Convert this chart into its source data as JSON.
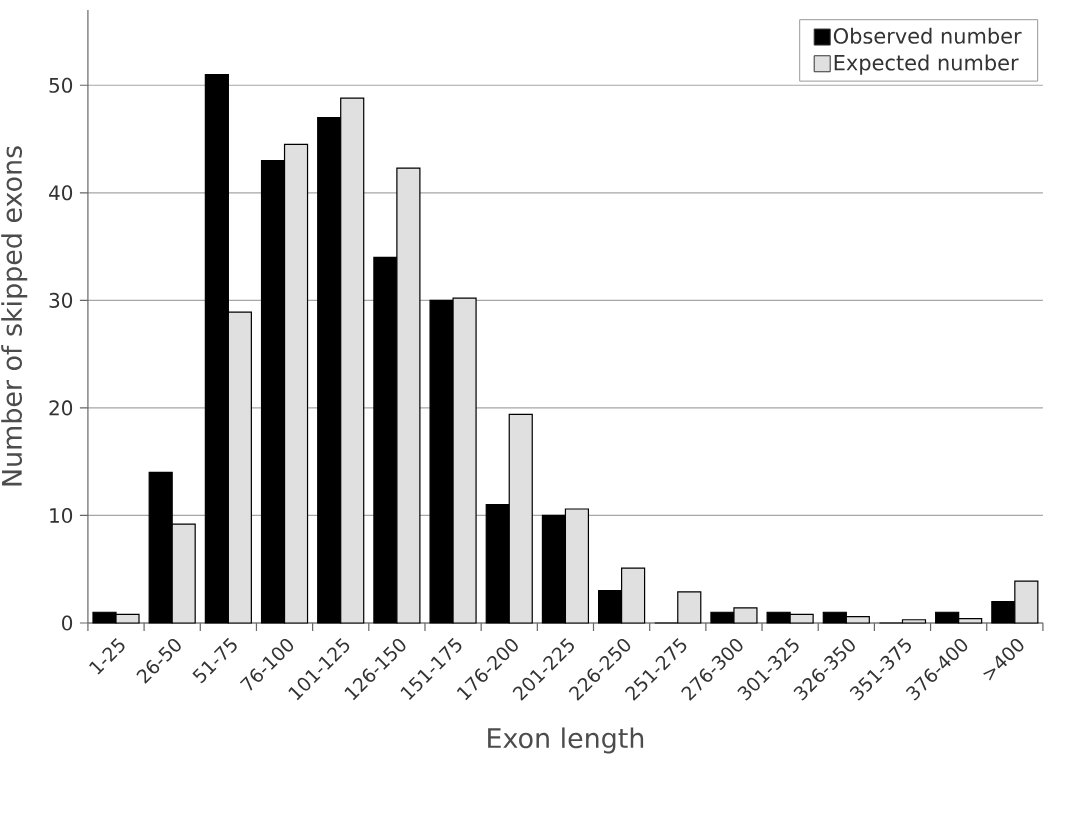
{
  "chart_data": {
    "type": "bar",
    "xlabel": "Exon length",
    "ylabel": "Number of skipped exons",
    "categories": [
      "1-25",
      "26-50",
      "51-75",
      "76-100",
      "101-125",
      "126-150",
      "151-175",
      "176-200",
      "201-225",
      "226-250",
      "251-275",
      "276-300",
      "301-325",
      "326-350",
      "351-375",
      "376-400",
      ">400"
    ],
    "series": [
      {
        "name": "Observed number",
        "color": "#000000",
        "values": [
          1,
          14,
          51,
          43,
          47,
          34,
          30,
          11,
          10,
          3,
          0,
          1,
          1,
          1,
          0,
          1,
          2
        ]
      },
      {
        "name": "Expected number",
        "color": "#e0e0e0",
        "values": [
          0.8,
          9.2,
          28.9,
          44.5,
          48.8,
          42.3,
          30.2,
          19.4,
          10.6,
          5.1,
          2.9,
          1.4,
          0.8,
          0.6,
          0.3,
          0.4,
          3.9
        ]
      }
    ],
    "ylim": [
      0,
      57
    ],
    "yticks": [
      0,
      10,
      20,
      30,
      40,
      50
    ],
    "grid": "y",
    "legend": "top right"
  }
}
